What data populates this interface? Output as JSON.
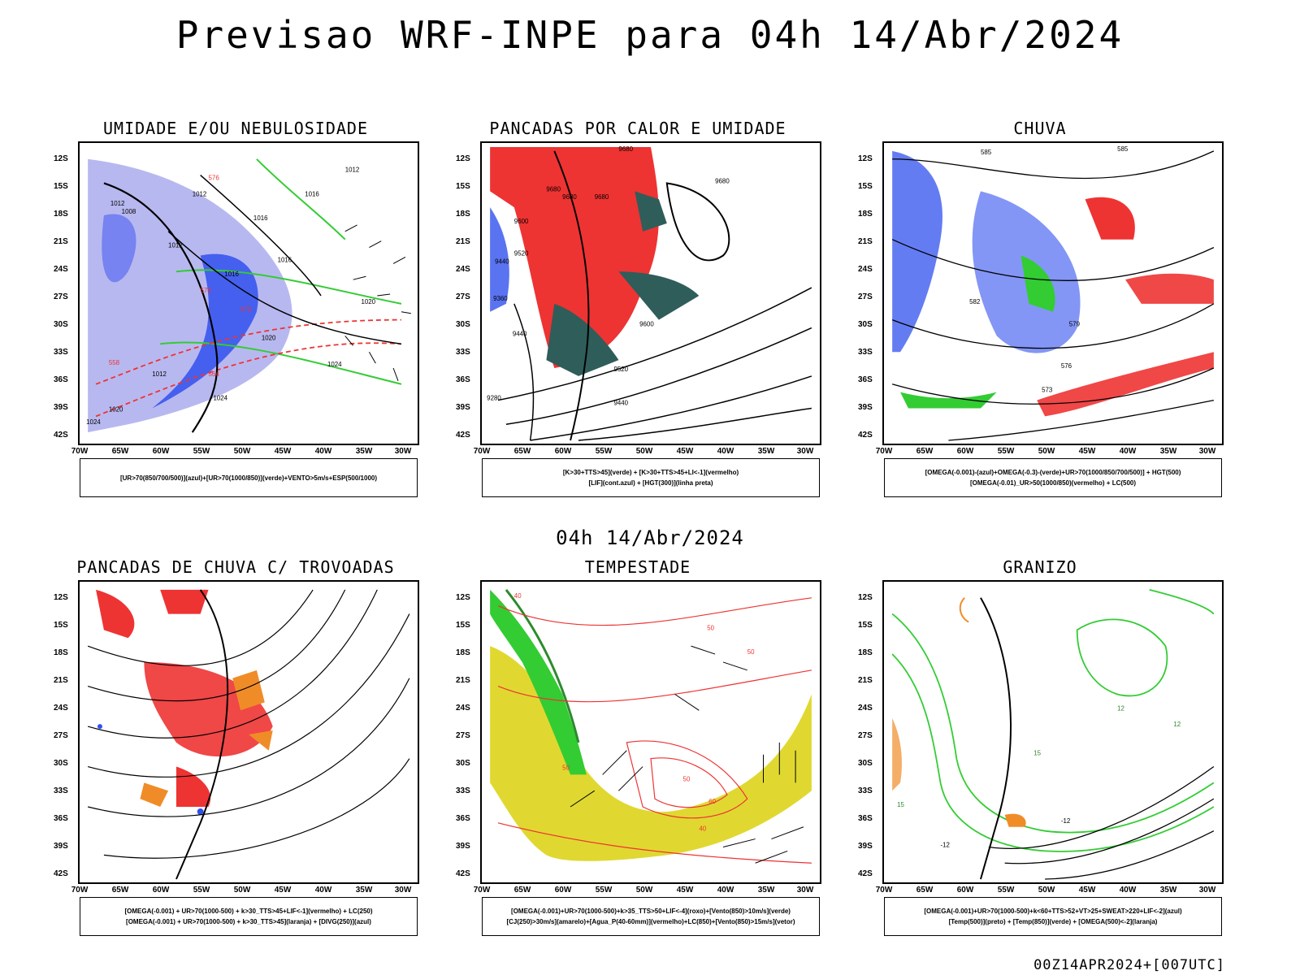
{
  "title": "Previsao WRF-INPE  para 04h 14/Abr/2024",
  "mid_time": "04h 14/Abr/2024",
  "footer": "00Z14APR2024+[007UTC]",
  "axes": {
    "lat_ticks": [
      "12S",
      "15S",
      "18S",
      "21S",
      "24S",
      "27S",
      "30S",
      "33S",
      "36S",
      "39S",
      "42S"
    ],
    "lon_ticks": [
      "70W",
      "65W",
      "60W",
      "55W",
      "50W",
      "45W",
      "40W",
      "35W",
      "30W"
    ]
  },
  "colors": {
    "blue": "#3050ee",
    "light_blue": "#b8b8f0",
    "green": "#33cc33",
    "red": "#ee3333",
    "orange": "#f08c28",
    "yellow": "#e0d830",
    "dark_teal": "#2f5d5a"
  },
  "panels": [
    {
      "title": "UMIDADE E/OU NEBULOSIDADE",
      "legend": [
        "[UR>70(850/700/500)](azul)+[UR>70(1000/850)](verde)+VENTO>5m/s+ESP(500/1000)"
      ],
      "labels": [
        "1012",
        "1012",
        "1016",
        "1012",
        "1008",
        "1012",
        "1016",
        "1016",
        "1016",
        "1020",
        "1020",
        "1024",
        "1024",
        "1020",
        "1024",
        "1012",
        "576",
        "576",
        "570",
        "564",
        "558"
      ]
    },
    {
      "title": "PANCADAS POR CALOR E UMIDADE",
      "legend": [
        "[K>30+TTS>45](verde) + [K>30+TTS>45+LI<-1](vermelho)",
        "[LIF](cont.azul) + [HGT(300)](linha preta)"
      ],
      "labels": [
        "9680",
        "9680",
        "9680",
        "9680",
        "9680",
        "9600",
        "9520",
        "9440",
        "9360",
        "9440",
        "9280",
        "9600",
        "9520",
        "9440"
      ]
    },
    {
      "title": "CHUVA",
      "legend": [
        "[OMEGA(-0.001)-(azul)+OMEGA(-0.3)-(verde)+UR>70(1000/850/700/500)] + HGT(500)",
        "[OMEGA(-0.01)_UR>50(1000/850)(vermelho) + LC(500)"
      ],
      "labels": [
        "585",
        "585",
        "582",
        "579",
        "576",
        "573"
      ]
    },
    {
      "title": "PANCADAS DE CHUVA C/ TROVOADAS",
      "legend": [
        "[OMEGA(-0.001) + UR>70(1000-500) + k>30_TTS>45+LIF<-1](vermelho) + LC(250)",
        "[OMEGA(-0.001) + UR>70(1000-500) + k>30_TTS>45](laranja) + [DIVG(250)](azul)"
      ],
      "labels": []
    },
    {
      "title": "TEMPESTADE",
      "legend": [
        "[OMEGA(-0.001)+UR>70(1000-500)+k>35_TTS>50+LIF<-4](roxo)+[Vento(850)>10m/s](verde)",
        "[CJ(250)>30m/s](amarelo)+[Agua_P(40-60mm)](vermelho)+LC(850)+[Vento(850)>15m/s](vetor)"
      ],
      "labels": [
        "50",
        "50",
        "40",
        "50",
        "50",
        "60",
        "40"
      ]
    },
    {
      "title": "GRANIZO",
      "legend": [
        "[OMEGA(-0.001)+UR>70(1000-500)+k<60+TTS>52+VT>25+SWEAT>220+LIF<-2](azul)",
        "[Temp(500)](preto) + [Temp(850)](verde) + [OMEGA(500)<-2](laranja)"
      ],
      "labels": [
        "-12",
        "-12",
        "15",
        "12",
        "15",
        "12"
      ]
    }
  ]
}
